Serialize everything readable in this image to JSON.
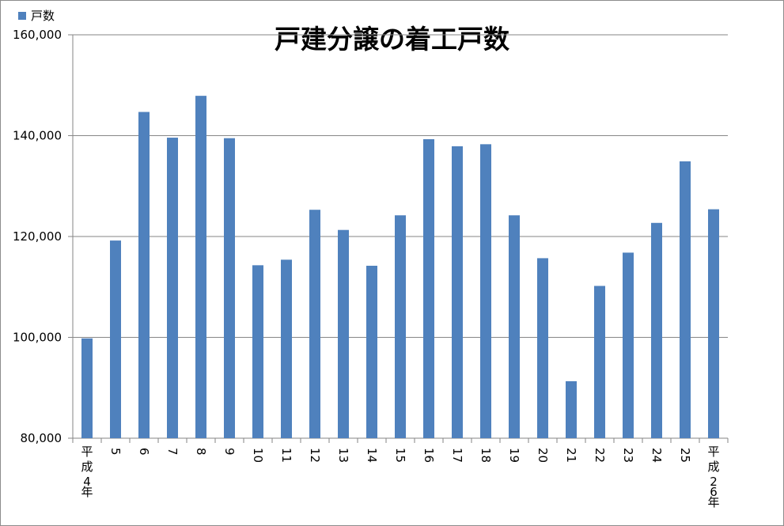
{
  "chart_data": {
    "type": "bar",
    "title": "戸建分譲の着工戸数",
    "categories": [
      "平成4年",
      "5",
      "6",
      "7",
      "8",
      "9",
      "10",
      "11",
      "12",
      "13",
      "14",
      "15",
      "16",
      "17",
      "18",
      "19",
      "20",
      "21",
      "22",
      "23",
      "24",
      "25",
      "平成26年"
    ],
    "series": [
      {
        "name": "戸数",
        "values": [
          99800,
          119200,
          144700,
          139600,
          147900,
          139500,
          114300,
          115400,
          125300,
          121300,
          114200,
          124200,
          139300,
          137900,
          138300,
          124200,
          115700,
          91300,
          110200,
          116800,
          122700,
          134900,
          125400
        ]
      }
    ],
    "ylim": [
      80000,
      160000
    ],
    "yticks": [
      "80,000",
      "100,000",
      "120,000",
      "140,000",
      "160,000"
    ],
    "ytick_values": [
      80000,
      100000,
      120000,
      140000,
      160000
    ],
    "grid": true,
    "legend_position": "top-left",
    "xlabel": "",
    "ylabel": ""
  },
  "colors": {
    "bar": "#4f81bd",
    "grid": "#868686",
    "axis": "#868686"
  }
}
